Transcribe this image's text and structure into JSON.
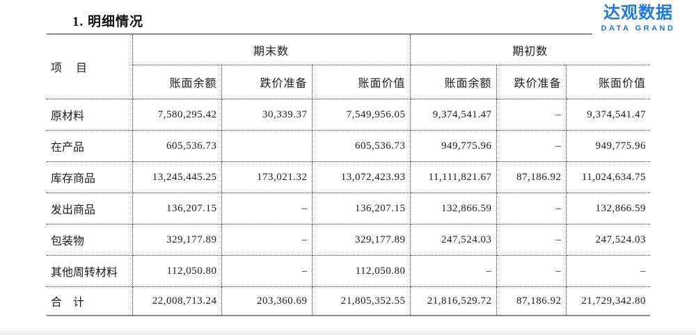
{
  "page": {
    "title": "1. 明细情况"
  },
  "brand": {
    "name_cn": "达观数据",
    "name_en": "DATA GRAND",
    "color": "#1e78e8"
  },
  "table": {
    "item_header": "项　目",
    "group_headers": {
      "end_period": "期末数",
      "begin_period": "期初数"
    },
    "sub_headers": [
      "账面余额",
      "跌价准备",
      "账面价值",
      "账面余额",
      "跌价准备",
      "账面价值"
    ],
    "rows": [
      {
        "item": "原材料",
        "cells": [
          "7,580,295.42",
          "30,339.37",
          "7,549,956.05",
          "9,374,541.47",
          "–",
          "9,374,541.47"
        ]
      },
      {
        "item": "在产品",
        "cells": [
          "605,536.73",
          "",
          "605,536.73",
          "949,775.96",
          "–",
          "949,775.96"
        ]
      },
      {
        "item": "库存商品",
        "cells": [
          "13,245,445.25",
          "173,021.32",
          "13,072,423.93",
          "11,111,821.67",
          "87,186.92",
          "11,024,634.75"
        ]
      },
      {
        "item": "发出商品",
        "cells": [
          "136,207.15",
          "–",
          "136,207.15",
          "132,866.59",
          "–",
          "132,866.59"
        ]
      },
      {
        "item": "包装物",
        "cells": [
          "329,177.89",
          "–",
          "329,177.89",
          "247,524.03",
          "–",
          "247,524.03"
        ]
      },
      {
        "item": "其他周转材料",
        "cells": [
          "112,050.80",
          "–",
          "112,050.80",
          "–",
          "–",
          "–"
        ]
      },
      {
        "item": "合　计",
        "cells": [
          "22,008,713.24",
          "203,360.69",
          "21,805,352.55",
          "21,816,529.72",
          "87,186.92",
          "21,729,342.80"
        ],
        "total": true
      }
    ]
  }
}
